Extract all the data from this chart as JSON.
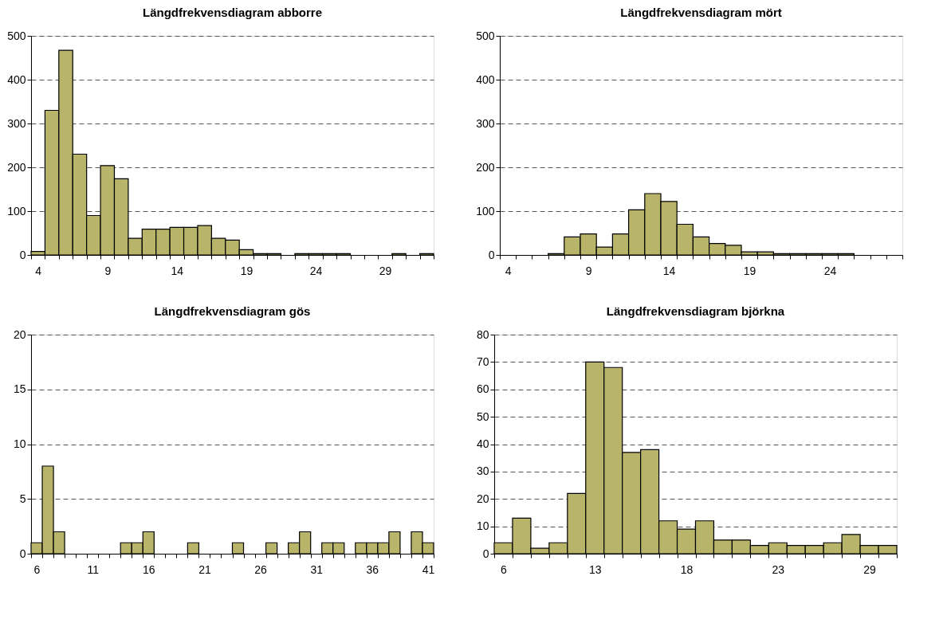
{
  "chart_data": [
    {
      "type": "bar",
      "title": "Längdfrekvensdiagram abborre",
      "categories": [
        "4",
        null,
        null,
        null,
        null,
        "9",
        null,
        null,
        null,
        null,
        "14",
        null,
        null,
        null,
        null,
        "19",
        null,
        null,
        null,
        null,
        "24",
        null,
        null,
        null,
        null,
        "29",
        null,
        null,
        null
      ],
      "values": [
        8,
        330,
        467,
        230,
        90,
        204,
        174,
        38,
        59,
        59,
        63,
        63,
        67,
        38,
        34,
        12,
        3,
        3,
        0,
        3,
        3,
        3,
        3,
        0,
        0,
        0,
        3,
        0,
        3
      ],
      "color": "#b8b46a",
      "ylim": [
        0,
        500
      ],
      "yticks": [
        0,
        100,
        200,
        300,
        400,
        500
      ],
      "grid": "y"
    },
    {
      "type": "bar",
      "title": "Längdfrekvensdiagram mört",
      "categories": [
        "4",
        null,
        null,
        null,
        null,
        "9",
        null,
        null,
        null,
        null,
        "14",
        null,
        null,
        null,
        null,
        "19",
        null,
        null,
        null,
        null,
        "24",
        null,
        null,
        null,
        null
      ],
      "values": [
        0,
        0,
        0,
        3,
        41,
        48,
        18,
        48,
        103,
        140,
        122,
        70,
        41,
        26,
        22,
        7,
        7,
        3,
        3,
        3,
        3,
        3,
        0,
        0,
        0
      ],
      "color": "#b8b46a",
      "ylim": [
        0,
        500
      ],
      "yticks": [
        0,
        100,
        200,
        300,
        400,
        500
      ],
      "grid": "y"
    },
    {
      "type": "bar",
      "title": "Längdfrekvensdiagram gös",
      "categories": [
        "6",
        null,
        null,
        null,
        null,
        "11",
        null,
        null,
        null,
        null,
        "16",
        null,
        null,
        null,
        null,
        "21",
        null,
        null,
        null,
        null,
        "26",
        null,
        null,
        null,
        null,
        "31",
        null,
        null,
        null,
        null,
        "36",
        null,
        null,
        null,
        null,
        "41"
      ],
      "values": [
        1,
        8,
        2,
        0,
        0,
        0,
        0,
        0,
        1,
        1,
        2,
        0,
        0,
        0,
        1,
        0,
        0,
        0,
        1,
        0,
        0,
        1,
        0,
        1,
        2,
        0,
        1,
        1,
        0,
        1,
        1,
        1,
        2,
        0,
        2,
        1
      ],
      "color": "#b8b46a",
      "ylim": [
        0,
        20
      ],
      "yticks": [
        0,
        5,
        10,
        15,
        20
      ],
      "grid": "y"
    },
    {
      "type": "bar",
      "title": "Längdfrekvensdiagram björkna",
      "categories": [
        "6",
        null,
        null,
        null,
        null,
        "13",
        null,
        null,
        null,
        null,
        "18",
        null,
        null,
        null,
        null,
        "23",
        null,
        null,
        null,
        null,
        "29",
        null
      ],
      "values": [
        4,
        13,
        2,
        4,
        22,
        70,
        68,
        37,
        38,
        12,
        9,
        12,
        5,
        5,
        3,
        4,
        3,
        3,
        4,
        7,
        3,
        3
      ],
      "color": "#b8b46a",
      "ylim": [
        0,
        80
      ],
      "yticks": [
        0,
        10,
        20,
        30,
        40,
        50,
        60,
        70,
        80
      ],
      "grid": "y"
    }
  ]
}
